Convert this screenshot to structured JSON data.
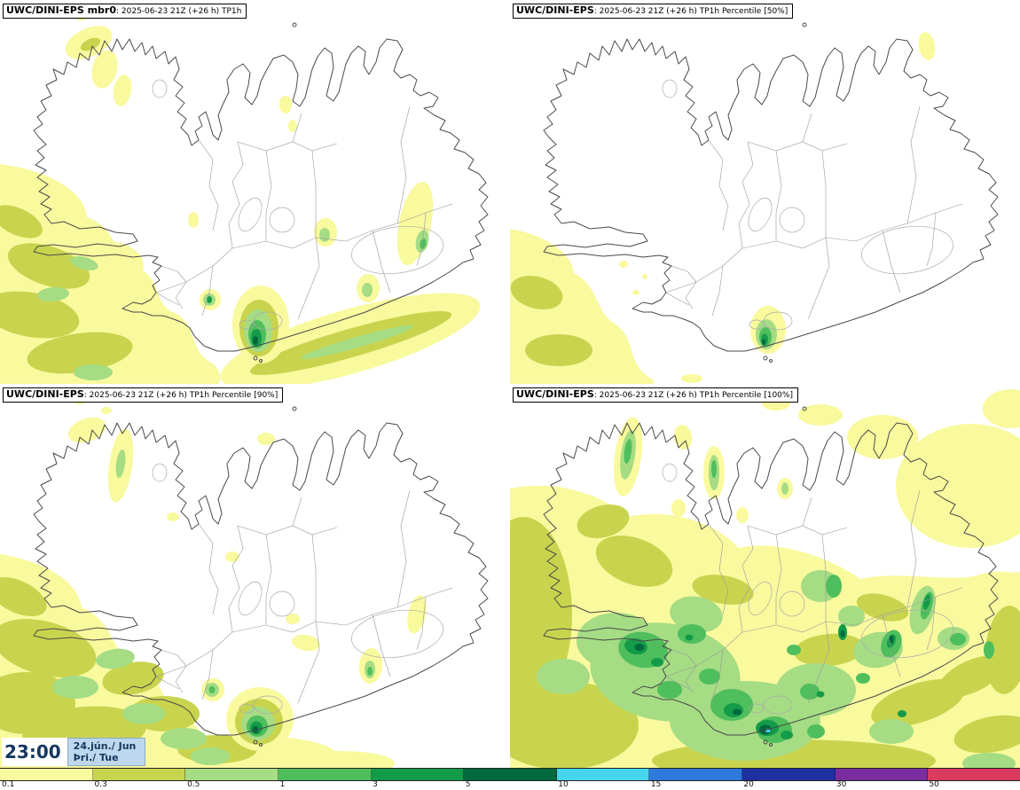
{
  "panels": [
    {
      "model": "UWC/DINI-EPS mbr0",
      "subtitle": ": 2025-06-23 21Z (+26 h) TP1h"
    },
    {
      "model": "UWC/DINI-EPS",
      "subtitle": ": 2025-06-23 21Z (+26 h) TP1h Percentile [50%]"
    },
    {
      "model": "UWC/DINI-EPS",
      "subtitle": ": 2025-06-23 21Z (+26 h) TP1h Percentile [90%]"
    },
    {
      "model": "UWC/DINI-EPS",
      "subtitle": ": 2025-06-23 21Z (+26 h) TP1h Percentile [100%]"
    }
  ],
  "time_box": {
    "time": "23:00",
    "date_line": "24.jún./ Jun",
    "weekday_line": "Þri./ Tue"
  },
  "colorbar": {
    "ticks": [
      "0.1",
      "0.3",
      "0.5",
      "1",
      "3",
      "5",
      "10",
      "15",
      "20",
      "30",
      "50"
    ],
    "segment_colors": [
      "#F9F99E",
      "#C9D44E",
      "#A5DC84",
      "#4FBE5C",
      "#149B49",
      "#00693E",
      "#45D5EE",
      "#2E79DC",
      "#1E2FA2",
      "#7A2D9E",
      "#D93A5E"
    ]
  },
  "colors": {
    "time_text": "#17375E",
    "date_box_bg": "#BDD7EE"
  }
}
